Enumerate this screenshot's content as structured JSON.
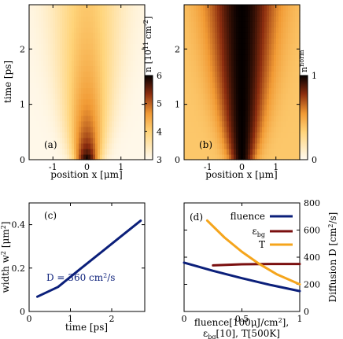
{
  "chart_data": [
    {
      "panel": "(a)",
      "type": "heatmap",
      "xlabel": "position x [μm]",
      "ylabel": "time [ps]",
      "xlim": [
        -1.7,
        1.7
      ],
      "ylim": [
        0,
        2.8
      ],
      "xticks": [
        -1,
        0,
        1
      ],
      "yticks": [
        0,
        1,
        2
      ],
      "colorbar": {
        "label": "n [10",
        "label_sup": "11",
        "label_unit": " cm",
        "label_sup2": "-2",
        "label_end": "]",
        "range": [
          3,
          6
        ],
        "ticks": [
          3,
          4,
          5,
          6
        ]
      },
      "model": {
        "w0": 0.26,
        "diffusion_growth": 0.16,
        "peak": 6,
        "floor": 3
      }
    },
    {
      "panel": "(b)",
      "type": "heatmap",
      "xlabel": "position x [μm]",
      "ylabel": "",
      "xlim": [
        -1.7,
        1.7
      ],
      "ylim": [
        0,
        2.8
      ],
      "xticks": [
        -1,
        0,
        1
      ],
      "yticks": [
        0,
        1,
        2
      ],
      "colorbar": {
        "label": "n",
        "label_sup": "norm",
        "range": [
          0,
          1
        ],
        "ticks": [
          0,
          1
        ]
      },
      "model": {
        "w0": 0.26,
        "diffusion_growth": 0.16,
        "peak": 1,
        "floor": 0
      }
    },
    {
      "panel": "(c)",
      "type": "line",
      "xlabel": "time [ps]",
      "ylabel": "width w",
      "ylabel_sup": "2",
      "ylabel_unit": " [μm",
      "ylabel_sup2": "2",
      "ylabel_end": "]",
      "xlim": [
        0,
        2.8
      ],
      "ylim": [
        0,
        0.5
      ],
      "xticks": [
        0,
        1,
        2
      ],
      "yticks": [
        0,
        0.2,
        0.4
      ],
      "annotation": "D = 360 cm",
      "annotation_sup": "2",
      "annotation_end": "/s",
      "series": [
        {
          "color": "#0b1f7a",
          "x": [
            0.2,
            0.7,
            1.2,
            1.7,
            2.2,
            2.7
          ],
          "y": [
            0.068,
            0.113,
            0.19,
            0.266,
            0.342,
            0.418
          ]
        }
      ]
    },
    {
      "panel": "(d)",
      "type": "line",
      "xlabel_line1": "fluence[100μJ/cm",
      "xlabel_line1_sup": "2",
      "xlabel_line1_end": "],",
      "xlabel_line2_pre": "ε",
      "xlabel_line2_sub": "bg",
      "xlabel_line2_end": "[10], T[500K]",
      "ylabel": "Diffusion D [cm",
      "ylabel_sup": "2",
      "ylabel_end": "/s]",
      "xlim": [
        0,
        1
      ],
      "ylim": [
        0,
        800
      ],
      "xticks": [
        0,
        0.5,
        1
      ],
      "yticks": [
        0,
        200,
        400,
        600,
        800
      ],
      "legend_position": "top-right",
      "series": [
        {
          "name": "fluence",
          "color": "#0b1f7a",
          "x": [
            0,
            0.25,
            0.5,
            0.75,
            1.0
          ],
          "y": [
            360,
            300,
            245,
            195,
            150
          ]
        },
        {
          "name": "ε",
          "name_sub": "bg",
          "color": "#7a0f0f",
          "x": [
            0.25,
            0.5,
            0.75,
            1.0
          ],
          "y": [
            340,
            348,
            350,
            350
          ]
        },
        {
          "name": "T",
          "color": "#f5a51c",
          "x": [
            0.2,
            0.35,
            0.5,
            0.65,
            0.8,
            1.0
          ],
          "y": [
            670,
            545,
            440,
            350,
            275,
            200
          ]
        }
      ]
    }
  ]
}
